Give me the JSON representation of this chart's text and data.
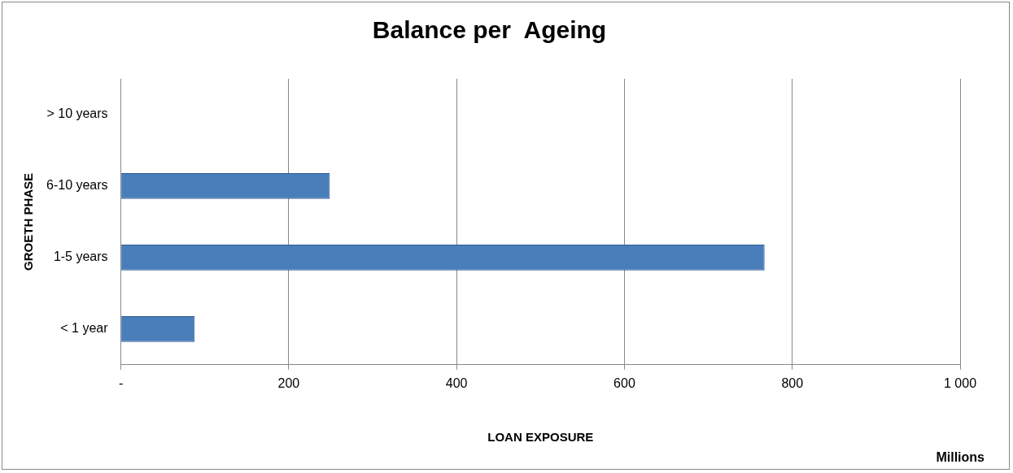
{
  "chart_data": {
    "type": "bar",
    "orientation": "horizontal",
    "title": "Balance per  Ageing",
    "categories": [
      "> 10 years",
      "6-10 years",
      "1-5 years",
      "< 1 year"
    ],
    "values": [
      0,
      249,
      767,
      88
    ],
    "color": "#4a7ebb",
    "xlim": [
      0,
      1000
    ],
    "xticks": [
      {
        "value": 0,
        "label": "-"
      },
      200,
      400,
      600,
      800,
      {
        "value": 1000,
        "label": "1 000"
      }
    ],
    "grid": "x",
    "legend": false,
    "xlabel": "LOAN EXPOSURE",
    "ylabel": "GROETH PHASE",
    "annotations": [
      "Millions"
    ]
  }
}
